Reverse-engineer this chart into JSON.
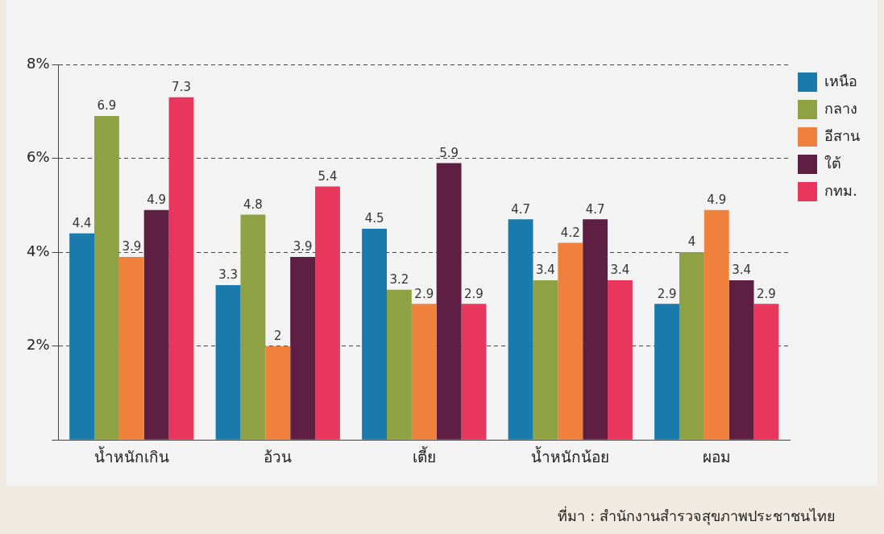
{
  "chart_data": {
    "type": "bar",
    "categories": [
      "น้ำหนักเกิน",
      "อ้วน",
      "เตี้ย",
      "น้ำหนักน้อย",
      "ผอม"
    ],
    "series": [
      {
        "name": "เหนือ",
        "color": "#1a7aab",
        "values": [
          4.4,
          3.3,
          4.5,
          4.7,
          2.9
        ]
      },
      {
        "name": "กลาง",
        "color": "#8ea243",
        "values": [
          6.9,
          4.8,
          3.2,
          3.4,
          4
        ]
      },
      {
        "name": "อีสาน",
        "color": "#f0813c",
        "values": [
          3.9,
          2,
          2.9,
          4.2,
          4.9
        ]
      },
      {
        "name": "ใต้",
        "color": "#5e1f42",
        "values": [
          4.9,
          3.9,
          5.9,
          4.7,
          3.4
        ]
      },
      {
        "name": "กทม.",
        "color": "#e8365d",
        "values": [
          7.3,
          5.4,
          2.9,
          3.4,
          2.9
        ]
      }
    ],
    "ylim": [
      0,
      8
    ],
    "yticks": [
      {
        "value": 0,
        "label": null
      },
      {
        "value": 2,
        "label": "2%"
      },
      {
        "value": 4,
        "label": "4%"
      },
      {
        "value": 6,
        "label": "6%"
      },
      {
        "value": 8,
        "label": "8%"
      }
    ],
    "grid": "y",
    "line_style": "dashed",
    "legend": "top right",
    "data_labels": true,
    "annotations": [
      "ที่มา : สำนักงานสำรวจสุขภาพประชาชนไทย"
    ]
  }
}
